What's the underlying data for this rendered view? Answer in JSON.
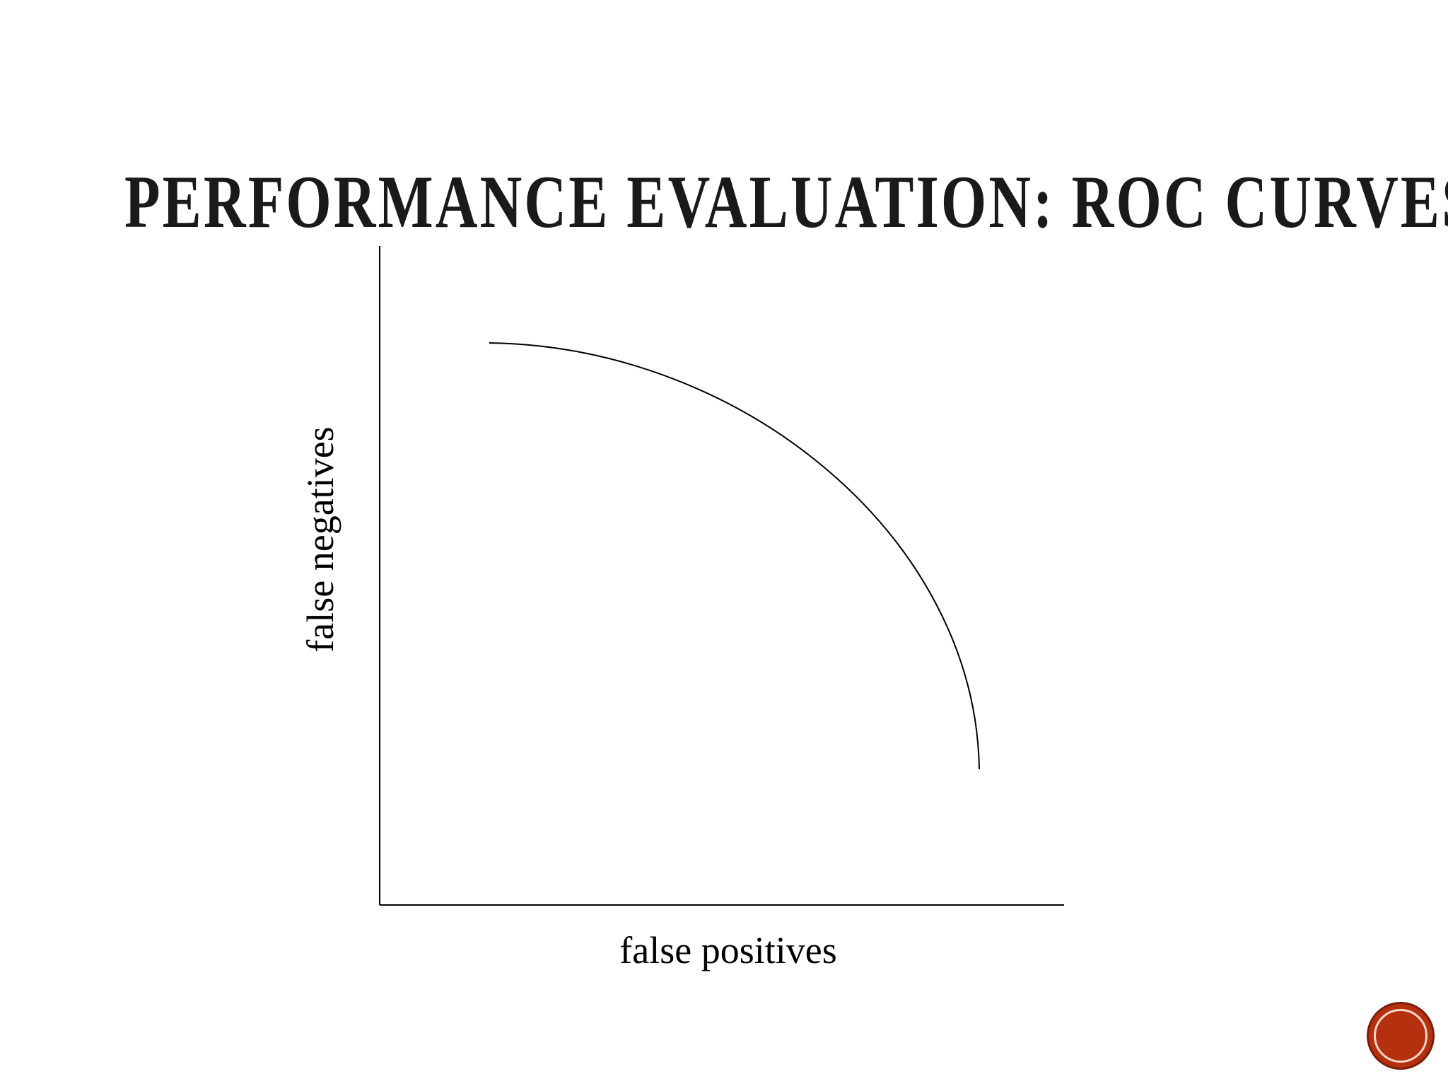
{
  "slide": {
    "title": "Performance Evaluation: ROC Curves"
  },
  "diagram": {
    "x_axis_label": "false positives",
    "y_axis_label": "false negatives"
  },
  "nav": {
    "accent_color": "#b5300f"
  }
}
